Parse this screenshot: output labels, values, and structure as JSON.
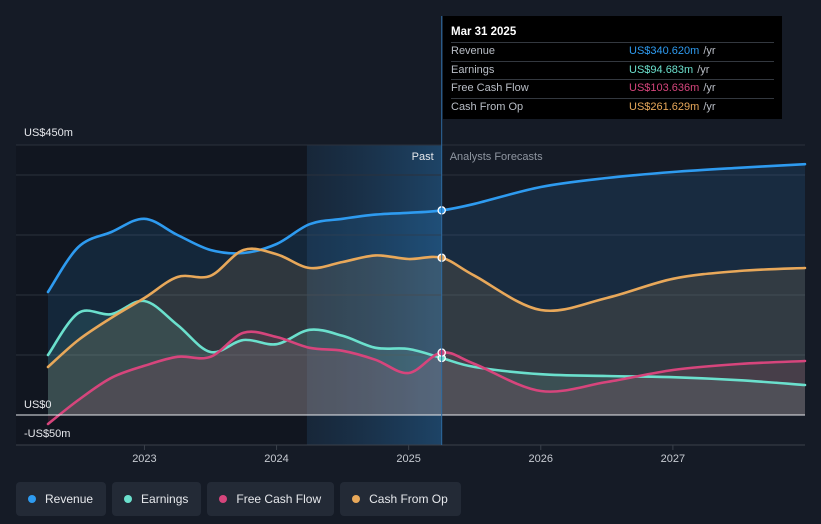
{
  "tooltip": {
    "date": "Mar 31 2025",
    "rows": [
      {
        "label": "Revenue",
        "value": "US$340.620m",
        "unit": "/yr",
        "color": "#2e9bf0"
      },
      {
        "label": "Earnings",
        "value": "US$94.683m",
        "unit": "/yr",
        "color": "#6be0cd"
      },
      {
        "label": "Free Cash Flow",
        "value": "US$103.636m",
        "unit": "/yr",
        "color": "#d6457c"
      },
      {
        "label": "Cash From Op",
        "value": "US$261.629m",
        "unit": "/yr",
        "color": "#e8a85a"
      }
    ]
  },
  "legend": [
    {
      "label": "Revenue",
      "color": "#2e9bf0"
    },
    {
      "label": "Earnings",
      "color": "#6be0cd"
    },
    {
      "label": "Free Cash Flow",
      "color": "#d6457c"
    },
    {
      "label": "Cash From Op",
      "color": "#e8a85a"
    }
  ],
  "chart_data": {
    "type": "line",
    "y_unit": "US$ millions",
    "ylim": [
      -50,
      450
    ],
    "y_ticks": [
      {
        "value": 450,
        "label": "US$450m"
      },
      {
        "value": 0,
        "label": "US$0"
      },
      {
        "value": -50,
        "label": "-US$50m"
      }
    ],
    "x_range": [
      2022.27,
      2028.0
    ],
    "x_ticks": [
      {
        "value": 2023,
        "label": "2023"
      },
      {
        "value": 2024,
        "label": "2024"
      },
      {
        "value": 2025,
        "label": "2025"
      },
      {
        "value": 2026,
        "label": "2026"
      },
      {
        "value": 2027,
        "label": "2027"
      }
    ],
    "past_label": "Past",
    "forecast_label": "Analysts Forecasts",
    "past_highlight_start": 2024.23,
    "divider_x": 2025.25,
    "series": [
      {
        "name": "Revenue",
        "color": "#2e9bf0",
        "points": [
          [
            2022.27,
            205
          ],
          [
            2022.5,
            280
          ],
          [
            2022.75,
            305
          ],
          [
            2023.0,
            327
          ],
          [
            2023.25,
            300
          ],
          [
            2023.5,
            275
          ],
          [
            2023.75,
            270
          ],
          [
            2024.0,
            285
          ],
          [
            2024.25,
            318
          ],
          [
            2024.5,
            327
          ],
          [
            2024.75,
            334
          ],
          [
            2025.0,
            337
          ],
          [
            2025.25,
            341
          ],
          [
            2025.5,
            352
          ],
          [
            2026.0,
            380
          ],
          [
            2026.5,
            395
          ],
          [
            2027.0,
            405
          ],
          [
            2027.5,
            412
          ],
          [
            2028.0,
            418
          ]
        ]
      },
      {
        "name": "Earnings",
        "color": "#6be0cd",
        "points": [
          [
            2022.27,
            100
          ],
          [
            2022.5,
            170
          ],
          [
            2022.75,
            168
          ],
          [
            2023.0,
            190
          ],
          [
            2023.25,
            150
          ],
          [
            2023.5,
            105
          ],
          [
            2023.75,
            125
          ],
          [
            2024.0,
            118
          ],
          [
            2024.25,
            142
          ],
          [
            2024.5,
            132
          ],
          [
            2024.75,
            112
          ],
          [
            2025.0,
            110
          ],
          [
            2025.25,
            95
          ],
          [
            2025.5,
            80
          ],
          [
            2026.0,
            68
          ],
          [
            2026.5,
            65
          ],
          [
            2027.0,
            63
          ],
          [
            2027.5,
            58
          ],
          [
            2028.0,
            50
          ]
        ]
      },
      {
        "name": "Free Cash Flow",
        "color": "#d6457c",
        "points": [
          [
            2022.27,
            -15
          ],
          [
            2022.5,
            25
          ],
          [
            2022.75,
            62
          ],
          [
            2023.0,
            82
          ],
          [
            2023.25,
            97
          ],
          [
            2023.5,
            97
          ],
          [
            2023.75,
            137
          ],
          [
            2024.0,
            130
          ],
          [
            2024.25,
            112
          ],
          [
            2024.5,
            107
          ],
          [
            2024.75,
            92
          ],
          [
            2025.0,
            70
          ],
          [
            2025.25,
            104
          ],
          [
            2025.5,
            85
          ],
          [
            2026.0,
            40
          ],
          [
            2026.5,
            55
          ],
          [
            2027.0,
            75
          ],
          [
            2027.5,
            85
          ],
          [
            2028.0,
            90
          ]
        ]
      },
      {
        "name": "Cash From Op",
        "color": "#e8a85a",
        "points": [
          [
            2022.27,
            80
          ],
          [
            2022.5,
            125
          ],
          [
            2022.75,
            162
          ],
          [
            2023.0,
            195
          ],
          [
            2023.25,
            230
          ],
          [
            2023.5,
            232
          ],
          [
            2023.75,
            275
          ],
          [
            2024.0,
            268
          ],
          [
            2024.25,
            245
          ],
          [
            2024.5,
            255
          ],
          [
            2024.75,
            266
          ],
          [
            2025.0,
            260
          ],
          [
            2025.25,
            262
          ],
          [
            2025.5,
            232
          ],
          [
            2026.0,
            175
          ],
          [
            2026.5,
            195
          ],
          [
            2027.0,
            227
          ],
          [
            2027.5,
            240
          ],
          [
            2028.0,
            245
          ]
        ]
      }
    ]
  }
}
